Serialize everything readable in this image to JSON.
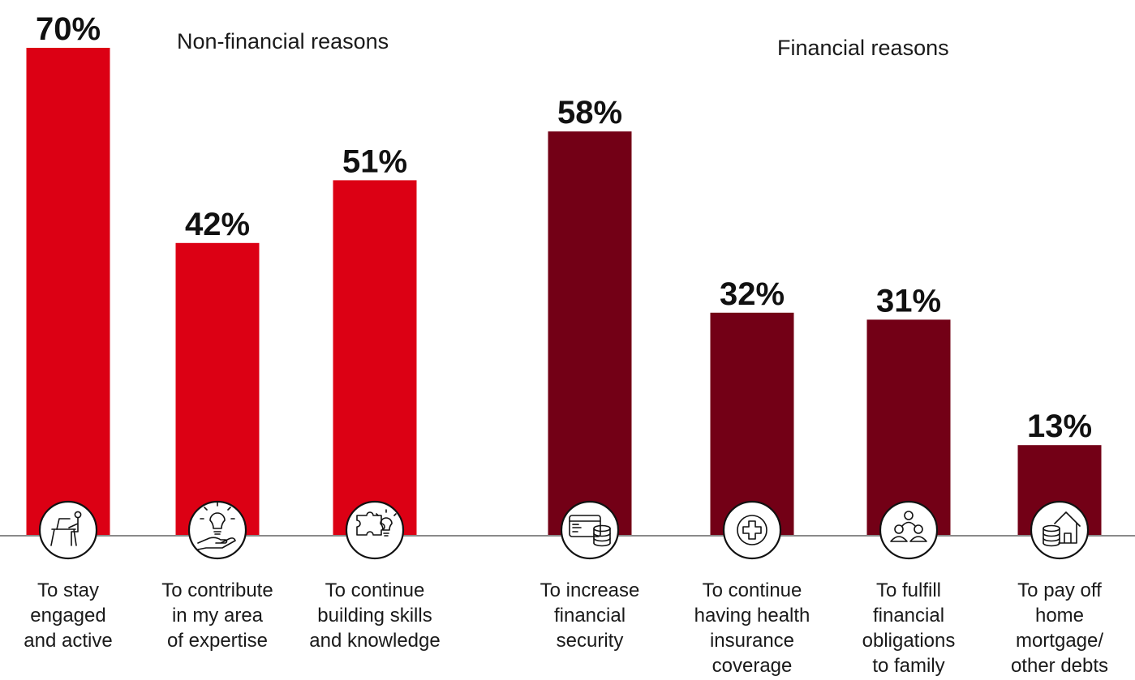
{
  "chart_data": {
    "type": "bar",
    "ylim": [
      0,
      75
    ],
    "grid": false,
    "legend": "none",
    "groups": [
      {
        "name": "Non-financial reasons",
        "color": "#dc0014",
        "indices": [
          0,
          1,
          2
        ]
      },
      {
        "name": "Financial reasons",
        "color": "#730016",
        "indices": [
          3,
          4,
          5,
          6
        ]
      }
    ],
    "bars": [
      {
        "value": 70,
        "value_label": "70%",
        "label_lines": [
          "To stay",
          "engaged",
          "and active"
        ],
        "icon": "person-at-desk-icon"
      },
      {
        "value": 42,
        "value_label": "42%",
        "label_lines": [
          "To contribute",
          "in my area",
          "of expertise"
        ],
        "icon": "lightbulb-in-hand-icon"
      },
      {
        "value": 51,
        "value_label": "51%",
        "label_lines": [
          "To continue",
          "building skills",
          "and knowledge"
        ],
        "icon": "puzzle-lightbulb-icon"
      },
      {
        "value": 58,
        "value_label": "58%",
        "label_lines": [
          "To increase",
          "financial",
          "security"
        ],
        "icon": "credit-card-coins-icon"
      },
      {
        "value": 32,
        "value_label": "32%",
        "label_lines": [
          "To continue",
          "having health",
          "insurance",
          "coverage"
        ],
        "icon": "medical-cross-icon"
      },
      {
        "value": 31,
        "value_label": "31%",
        "label_lines": [
          "To fulfill",
          "financial",
          "obligations",
          "to family"
        ],
        "icon": "family-group-icon"
      },
      {
        "value": 13,
        "value_label": "13%",
        "label_lines": [
          "To pay off",
          "home",
          "mortgage/",
          "other debts"
        ],
        "icon": "house-coins-icon"
      }
    ]
  }
}
